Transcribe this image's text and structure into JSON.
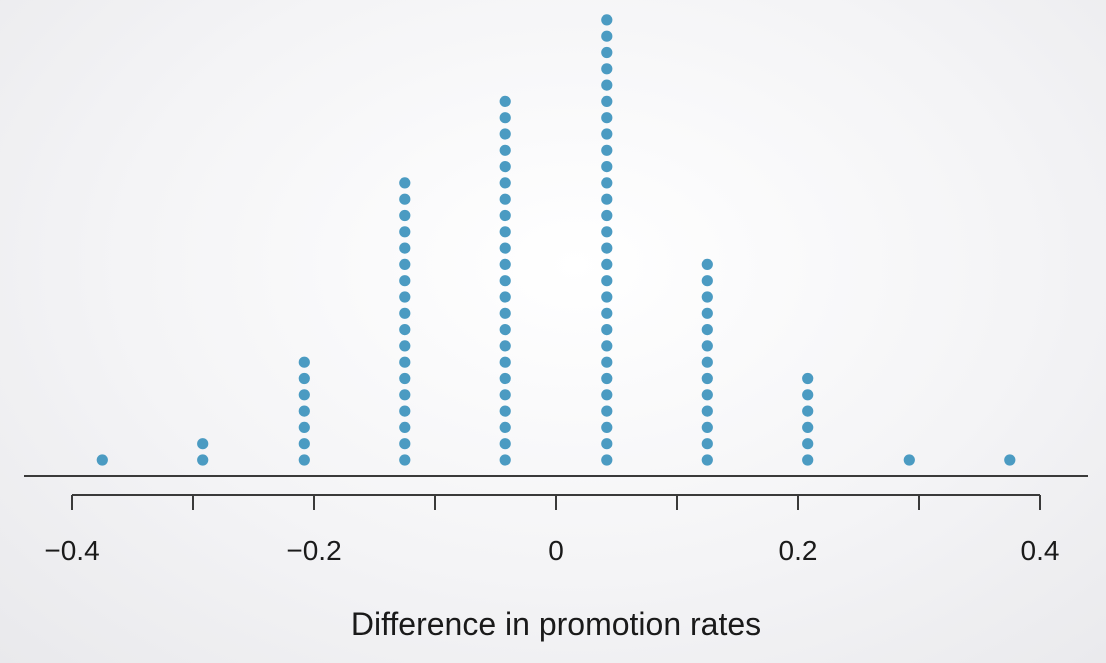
{
  "chart_data": {
    "type": "scatter",
    "subtype": "dot-plot",
    "xlabel": "Difference in promotion rates",
    "ylabel": "",
    "title": "",
    "xlim": [
      -0.4,
      0.4
    ],
    "x_tick_values": [
      -0.4,
      -0.3,
      -0.2,
      -0.1,
      0,
      0.1,
      0.2,
      0.3,
      0.4
    ],
    "x_tick_labels": [
      "−0.4",
      "",
      "−0.2",
      "",
      "0",
      "",
      "0.2",
      "",
      "0.4"
    ],
    "grid": false,
    "legend": "none",
    "dot_color": "#4b9bc2",
    "bins": [
      {
        "x": -0.375,
        "count": 1
      },
      {
        "x": -0.292,
        "count": 2
      },
      {
        "x": -0.208,
        "count": 7
      },
      {
        "x": -0.125,
        "count": 18
      },
      {
        "x": -0.042,
        "count": 23
      },
      {
        "x": 0.042,
        "count": 28
      },
      {
        "x": 0.125,
        "count": 13
      },
      {
        "x": 0.208,
        "count": 6
      },
      {
        "x": 0.292,
        "count": 1
      },
      {
        "x": 0.375,
        "count": 1
      }
    ]
  }
}
